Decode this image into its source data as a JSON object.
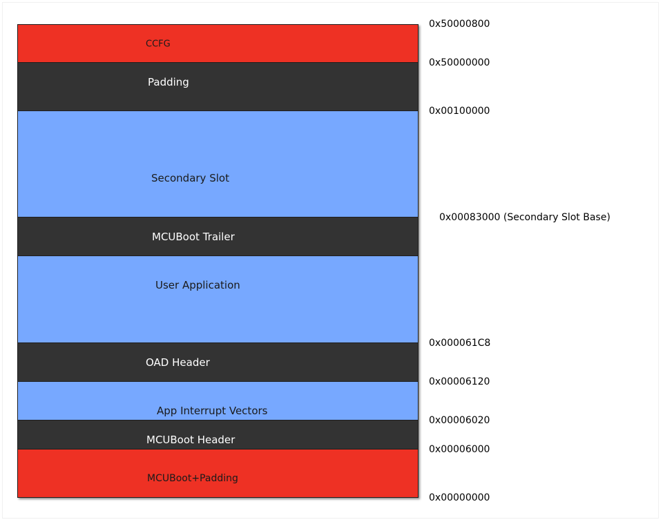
{
  "colors": {
    "red": "#ee3124",
    "dark": "#333333",
    "blue": "#77a8ff",
    "text_dark_bg": "#ffffff",
    "text_light_bg": "#1a1a1a"
  },
  "regions": [
    {
      "id": "ccfg",
      "label": "CCFG",
      "color": "red"
    },
    {
      "id": "padding",
      "label": "Padding",
      "color": "dark"
    },
    {
      "id": "secondary-slot",
      "label": "Secondary Slot",
      "color": "blue"
    },
    {
      "id": "mcuboot-trailer",
      "label": "MCUBoot Trailer",
      "color": "dark"
    },
    {
      "id": "user-application",
      "label": "User Application",
      "color": "blue"
    },
    {
      "id": "oad-header",
      "label": "OAD Header",
      "color": "dark"
    },
    {
      "id": "app-interrupt-vectors",
      "label": "App Interrupt Vectors",
      "color": "blue"
    },
    {
      "id": "mcuboot-header",
      "label": "MCUBoot Header",
      "color": "dark"
    },
    {
      "id": "mcuboot-padding",
      "label": "MCUBoot+Padding",
      "color": "red"
    }
  ],
  "addresses": [
    "0x50000800",
    "0x50000000",
    "0x00100000",
    "0x00083000 (Secondary Slot Base)",
    "0x000061C8",
    "0x00006120",
    "0x00006020",
    "0x00006000",
    "0x00000000"
  ]
}
